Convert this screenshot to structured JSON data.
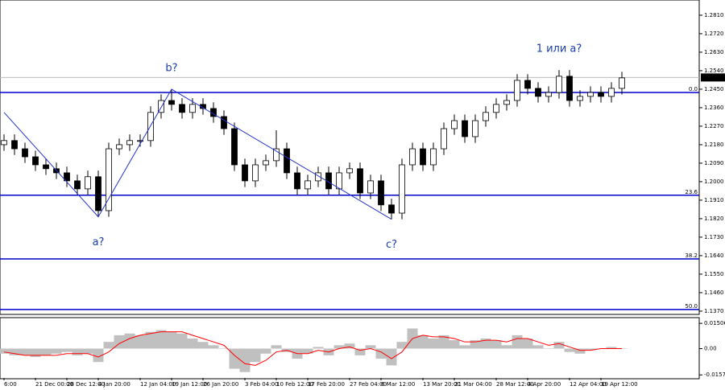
{
  "chart_data": {
    "type": "candlestick",
    "categories": [
      "6:00",
      null,
      null,
      "21 Dec 00:00",
      null,
      null,
      "28 Dec 12:00",
      null,
      null,
      "4 Jan 20:00",
      null,
      null,
      null,
      "12 Jan 04:00",
      null,
      null,
      "19 Jan 12:00",
      null,
      null,
      "26 Jan 20:00",
      null,
      null,
      null,
      "3 Feb 04:00",
      null,
      null,
      "10 Feb 12:00",
      null,
      null,
      "17 Feb 20:00",
      null,
      null,
      null,
      "27 Feb 04:00",
      null,
      null,
      "6 Mar 12:00",
      null,
      null,
      null,
      "13 Mar 20:00",
      null,
      null,
      "21 Mar 04:00",
      null,
      null,
      null,
      "28 Mar 12:00",
      null,
      null,
      "4 Apr 20:00",
      null,
      null,
      null,
      "12 Apr 04:00",
      null,
      null,
      "19 Apr 12:00",
      null,
      null
    ],
    "open": [
      1.218,
      1.22,
      1.216,
      1.2121,
      1.2082,
      1.2063,
      1.2043,
      1.2004,
      1.1965,
      1.2024,
      1.1859,
      1.216,
      1.218,
      1.22,
      1.22,
      1.2337,
      1.2395,
      1.2376,
      1.2337,
      1.2376,
      1.2356,
      1.2317,
      1.2258,
      1.2082,
      1.2004,
      1.2082,
      1.2102,
      1.216,
      1.2043,
      1.1965,
      1.2004,
      1.2043,
      1.1965,
      1.2043,
      1.2063,
      1.1945,
      1.2004,
      1.1887,
      1.1847,
      1.2082,
      1.216,
      1.2082,
      1.216,
      1.2258,
      1.2297,
      1.2219,
      1.2297,
      1.2337,
      1.2376,
      1.2395,
      1.2493,
      1.2454,
      1.2415,
      1.2434,
      1.2513,
      1.2395,
      1.2415,
      1.2434,
      1.2415,
      1.2454
    ],
    "high": [
      1.223,
      1.223,
      1.219,
      1.2151,
      1.2112,
      1.2093,
      1.2073,
      1.2034,
      1.2054,
      1.2054,
      1.219,
      1.221,
      1.223,
      1.223,
      1.2367,
      1.2425,
      1.245,
      1.2406,
      1.2406,
      1.2406,
      1.2386,
      1.2347,
      1.2288,
      1.2112,
      1.2112,
      1.2132,
      1.225,
      1.219,
      1.2073,
      1.2034,
      1.2073,
      1.2073,
      1.2073,
      1.2093,
      1.2093,
      1.2034,
      1.2034,
      1.1917,
      1.2112,
      1.219,
      1.219,
      1.219,
      1.2288,
      1.2327,
      1.2327,
      1.2327,
      1.2367,
      1.2406,
      1.2425,
      1.2523,
      1.2523,
      1.2484,
      1.2464,
      1.2543,
      1.2543,
      1.2445,
      1.2464,
      1.2464,
      1.2484,
      1.2535
    ],
    "low": [
      1.215,
      1.213,
      1.2091,
      1.2052,
      1.2033,
      1.2013,
      1.1974,
      1.1935,
      1.1935,
      1.1829,
      1.1829,
      1.213,
      1.215,
      1.217,
      1.217,
      1.2307,
      1.2346,
      1.2307,
      1.2307,
      1.2326,
      1.2287,
      1.2228,
      1.2052,
      1.1974,
      1.1974,
      1.2052,
      1.2072,
      1.2013,
      1.1935,
      1.1935,
      1.1974,
      1.1935,
      1.1935,
      1.2013,
      1.1915,
      1.1915,
      1.1857,
      1.1817,
      1.1817,
      1.2052,
      1.2052,
      1.2052,
      1.213,
      1.2228,
      1.2189,
      1.2189,
      1.2267,
      1.2307,
      1.2346,
      1.2365,
      1.2424,
      1.2385,
      1.2385,
      1.2404,
      1.2365,
      1.2365,
      1.2385,
      1.2385,
      1.2385,
      1.2424
    ],
    "close": [
      1.22,
      1.216,
      1.2121,
      1.2082,
      1.2063,
      1.2043,
      1.2004,
      1.1965,
      1.2024,
      1.1859,
      1.216,
      1.218,
      1.22,
      1.22,
      1.2337,
      1.2395,
      1.2376,
      1.2337,
      1.2376,
      1.2356,
      1.2317,
      1.2258,
      1.2082,
      1.2004,
      1.2082,
      1.2102,
      1.216,
      1.2043,
      1.1965,
      1.2004,
      1.2043,
      1.1965,
      1.2043,
      1.2063,
      1.1945,
      1.2004,
      1.1887,
      1.1847,
      1.2082,
      1.216,
      1.2082,
      1.216,
      1.2258,
      1.2297,
      1.2219,
      1.2297,
      1.2337,
      1.2376,
      1.2395,
      1.2493,
      1.2454,
      1.2415,
      1.2434,
      1.2513,
      1.2395,
      1.2415,
      1.2434,
      1.2415,
      1.2454,
      1.2505
    ],
    "color": "#000000",
    "ylim": [
      1.1358,
      1.2884
    ],
    "yticks": [
      {
        "value": 1.281,
        "label": "1.2810"
      },
      {
        "value": 1.272,
        "label": "1.2720"
      },
      {
        "value": 1.263,
        "label": "1.2630"
      },
      {
        "value": 1.254,
        "label": "1.2540"
      },
      {
        "value": 1.245,
        "label": "1.2450"
      },
      {
        "value": 1.236,
        "label": "1.2360"
      },
      {
        "value": 1.227,
        "label": "1.2270"
      },
      {
        "value": 1.218,
        "label": "1.2180"
      },
      {
        "value": 1.209,
        "label": "1.2090"
      },
      {
        "value": 1.2,
        "label": "1.2000"
      },
      {
        "value": 1.191,
        "label": "1.1910"
      },
      {
        "value": 1.182,
        "label": "1.1820"
      },
      {
        "value": 1.173,
        "label": "1.1730"
      },
      {
        "value": 1.164,
        "label": "1.1640"
      },
      {
        "value": 1.155,
        "label": "1.1550"
      },
      {
        "value": 1.146,
        "label": "1.1460"
      },
      {
        "value": 1.137,
        "label": "1.1370"
      }
    ],
    "current_price": 1.2507,
    "levels": [
      {
        "label": "0.0",
        "value": 1.2434,
        "color": "#0000cc"
      },
      {
        "label": "23.6",
        "value": 1.1934,
        "color": "#0000cc"
      },
      {
        "label": "38.2",
        "value": 1.1624,
        "color": "#0000cc"
      },
      {
        "label": "50.0",
        "value": 1.1378,
        "color": "#0000cc"
      }
    ],
    "wave_line": {
      "x": [
        0,
        9,
        16,
        37
      ],
      "y": [
        1.2337,
        1.1829,
        1.245,
        1.1817
      ],
      "color": "#2233cc"
    },
    "wave_labels": [
      {
        "text": "a?",
        "x": 9,
        "y": 1.1829,
        "position": "below"
      },
      {
        "text": "b?",
        "x": 16,
        "y": 1.245,
        "position": "above"
      },
      {
        "text": "c?",
        "x": 37,
        "y": 1.1817,
        "position": "below"
      },
      {
        "text": "1 или a?",
        "x": 53,
        "y": 1.2543,
        "position": "above"
      }
    ],
    "indicator": {
      "histogram": [
        -0.003,
        -0.004,
        -0.004,
        -0.005,
        -0.004,
        -0.003,
        -0.002,
        -0.004,
        -0.003,
        -0.008,
        0.004,
        0.008,
        0.009,
        0.008,
        0.01,
        0.011,
        0.01,
        0.009,
        0.006,
        0.004,
        0.002,
        0.0,
        -0.012,
        -0.014,
        -0.008,
        -0.003,
        0.002,
        -0.002,
        -0.006,
        -0.003,
        0.001,
        -0.004,
        0.002,
        0.003,
        -0.004,
        0.002,
        -0.006,
        -0.01,
        0.004,
        0.012,
        0.008,
        0.006,
        0.008,
        0.005,
        0.002,
        0.005,
        0.006,
        0.005,
        0.002,
        0.008,
        0.006,
        0.002,
        0.0,
        0.004,
        -0.002,
        -0.003,
        -0.001,
        0.0,
        0.001,
        0.0
      ],
      "histogram_color": "#c0c0c0",
      "signal": [
        -0.002,
        -0.003,
        -0.004,
        -0.004,
        -0.004,
        -0.004,
        -0.003,
        -0.003,
        -0.003,
        -0.005,
        -0.002,
        0.003,
        0.006,
        0.008,
        0.009,
        0.01,
        0.01,
        0.01,
        0.008,
        0.006,
        0.004,
        0.002,
        -0.004,
        -0.009,
        -0.01,
        -0.007,
        -0.002,
        -0.001,
        -0.003,
        -0.003,
        -0.001,
        -0.002,
        0.0,
        0.001,
        -0.001,
        0.0,
        -0.002,
        -0.006,
        -0.002,
        0.006,
        0.008,
        0.007,
        0.007,
        0.006,
        0.004,
        0.004,
        0.005,
        0.005,
        0.004,
        0.006,
        0.006,
        0.004,
        0.002,
        0.003,
        0.001,
        -0.001,
        -0.001,
        0.0,
        0.0,
        0.0
      ],
      "signal_color": "#ff0000",
      "ylim": [
        -0.0175,
        0.018
      ],
      "yticks": [
        0.01506,
        {
          "value": 0,
          "label": "0.00"
        },
        -0.0157
      ]
    }
  }
}
